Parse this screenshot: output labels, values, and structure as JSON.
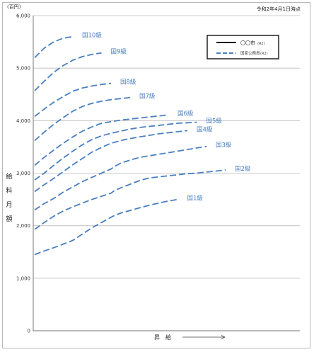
{
  "chart_data": {
    "type": "line",
    "unit_label": "(百円)",
    "date_note": "令和2年4月1日時点",
    "ylabel": [
      "給",
      "料",
      "月",
      "額"
    ],
    "xlabel": "昇　給",
    "ylim": [
      0,
      6000
    ],
    "yticks": [
      "0",
      "1,000",
      "2,000",
      "3,000",
      "4,000",
      "5,000",
      "6,000"
    ],
    "grid": true,
    "legend": {
      "position": "top-right",
      "items": [
        {
          "label": "〇〇市",
          "note": "(R2)",
          "style": "solid",
          "color": "#000000"
        },
        {
          "label": "国家公務員",
          "note": "(R2)",
          "style": "dashed",
          "color": "#4a7fc1"
        }
      ]
    },
    "series_color": "#4a7fc1",
    "series": [
      {
        "name": "国1級",
        "points": [
          [
            0,
            1450
          ],
          [
            1,
            1520
          ],
          [
            2,
            1580
          ],
          [
            3,
            1650
          ],
          [
            4,
            1720
          ],
          [
            5,
            1840
          ],
          [
            6,
            1960
          ],
          [
            7,
            2060
          ],
          [
            8,
            2160
          ],
          [
            8.3,
            2190
          ],
          [
            9,
            2240
          ],
          [
            10,
            2290
          ],
          [
            11,
            2340
          ],
          [
            12,
            2390
          ],
          [
            13,
            2430
          ],
          [
            14,
            2470
          ],
          [
            15,
            2500
          ]
        ]
      },
      {
        "name": "国2級",
        "points": [
          [
            0,
            1930
          ],
          [
            1,
            2060
          ],
          [
            2,
            2180
          ],
          [
            3,
            2280
          ],
          [
            4,
            2360
          ],
          [
            5,
            2430
          ],
          [
            6,
            2500
          ],
          [
            7,
            2560
          ],
          [
            8,
            2620
          ],
          [
            8.3,
            2660
          ],
          [
            9,
            2720
          ],
          [
            10,
            2790
          ],
          [
            11,
            2860
          ],
          [
            12,
            2910
          ],
          [
            13,
            2930
          ],
          [
            14,
            2950
          ],
          [
            15,
            2970
          ],
          [
            16,
            2990
          ],
          [
            17,
            3000
          ],
          [
            18,
            3020
          ],
          [
            19,
            3040
          ],
          [
            20,
            3060
          ]
        ]
      },
      {
        "name": "国3級",
        "points": [
          [
            0,
            2300
          ],
          [
            1,
            2420
          ],
          [
            2,
            2520
          ],
          [
            3,
            2640
          ],
          [
            4,
            2740
          ],
          [
            5,
            2840
          ],
          [
            6,
            2920
          ],
          [
            7,
            3000
          ],
          [
            8,
            3080
          ],
          [
            8.3,
            3120
          ],
          [
            9,
            3190
          ],
          [
            10,
            3250
          ],
          [
            11,
            3300
          ],
          [
            12,
            3330
          ],
          [
            13,
            3360
          ],
          [
            14,
            3390
          ],
          [
            15,
            3420
          ],
          [
            16,
            3450
          ],
          [
            17,
            3480
          ],
          [
            18,
            3510
          ]
        ]
      },
      {
        "name": "国4級",
        "points": [
          [
            0,
            2650
          ],
          [
            1,
            2780
          ],
          [
            2,
            2900
          ],
          [
            3,
            3030
          ],
          [
            4,
            3160
          ],
          [
            5,
            3280
          ],
          [
            6,
            3400
          ],
          [
            7,
            3490
          ],
          [
            8,
            3570
          ],
          [
            9,
            3620
          ],
          [
            10,
            3660
          ],
          [
            11,
            3690
          ],
          [
            12,
            3720
          ],
          [
            13,
            3750
          ],
          [
            14,
            3770
          ],
          [
            15,
            3790
          ],
          [
            16,
            3810
          ]
        ]
      },
      {
        "name": "国5級",
        "points": [
          [
            0,
            2870
          ],
          [
            1,
            3000
          ],
          [
            2,
            3150
          ],
          [
            3,
            3290
          ],
          [
            4,
            3420
          ],
          [
            5,
            3540
          ],
          [
            6,
            3640
          ],
          [
            7,
            3710
          ],
          [
            8,
            3760
          ],
          [
            9,
            3800
          ],
          [
            10,
            3840
          ],
          [
            11,
            3870
          ],
          [
            12,
            3890
          ],
          [
            13,
            3910
          ],
          [
            14,
            3930
          ],
          [
            15,
            3950
          ],
          [
            16,
            3960
          ],
          [
            17,
            3970
          ]
        ]
      },
      {
        "name": "国6級",
        "points": [
          [
            0,
            3150
          ],
          [
            1,
            3300
          ],
          [
            2,
            3440
          ],
          [
            3,
            3570
          ],
          [
            4,
            3690
          ],
          [
            5,
            3800
          ],
          [
            6,
            3880
          ],
          [
            7,
            3950
          ],
          [
            8,
            3980
          ],
          [
            9,
            4010
          ],
          [
            10,
            4030
          ],
          [
            11,
            4050
          ],
          [
            12,
            4070
          ],
          [
            13,
            4090
          ],
          [
            14,
            4110
          ]
        ]
      },
      {
        "name": "国7級",
        "points": [
          [
            0,
            3620
          ],
          [
            1,
            3780
          ],
          [
            2,
            3930
          ],
          [
            3,
            4060
          ],
          [
            4,
            4180
          ],
          [
            5,
            4270
          ],
          [
            6,
            4330
          ],
          [
            7,
            4370
          ],
          [
            8,
            4400
          ],
          [
            9,
            4420
          ],
          [
            10,
            4440
          ]
        ]
      },
      {
        "name": "国8級",
        "points": [
          [
            0,
            4080
          ],
          [
            1,
            4220
          ],
          [
            2,
            4350
          ],
          [
            3,
            4460
          ],
          [
            4,
            4560
          ],
          [
            5,
            4620
          ],
          [
            6,
            4660
          ],
          [
            7,
            4690
          ],
          [
            8,
            4710
          ]
        ]
      },
      {
        "name": "国9級",
        "points": [
          [
            0,
            4570
          ],
          [
            1,
            4750
          ],
          [
            2,
            4920
          ],
          [
            3,
            5050
          ],
          [
            4,
            5150
          ],
          [
            5,
            5220
          ],
          [
            6,
            5260
          ],
          [
            7,
            5290
          ]
        ]
      },
      {
        "name": "国10級",
        "points": [
          [
            0,
            5200
          ],
          [
            1,
            5380
          ],
          [
            2,
            5500
          ],
          [
            3,
            5570
          ],
          [
            4,
            5600
          ]
        ]
      }
    ]
  }
}
